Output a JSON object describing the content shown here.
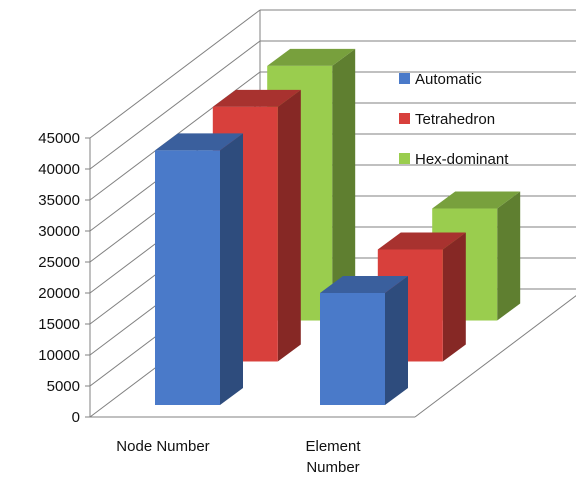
{
  "chart_data": {
    "type": "bar",
    "style": "3d-column",
    "categories": [
      "Node Number",
      "Element Number"
    ],
    "series": [
      {
        "name": "Automatic",
        "values": [
          43000,
          20000
        ],
        "color": "#4a7ac9"
      },
      {
        "name": "Tetrahedron",
        "values": [
          43000,
          20000
        ],
        "color": "#d8403c"
      },
      {
        "name": "Hex-dominant",
        "values": [
          43000,
          20000
        ],
        "color": "#9acd4e"
      }
    ],
    "title": "",
    "xlabel": "",
    "ylabel": "",
    "ylim": [
      0,
      45000
    ],
    "yticks": [
      0,
      5000,
      10000,
      15000,
      20000,
      25000,
      30000,
      35000,
      40000,
      45000
    ],
    "grid": true,
    "legend_position": "right"
  }
}
